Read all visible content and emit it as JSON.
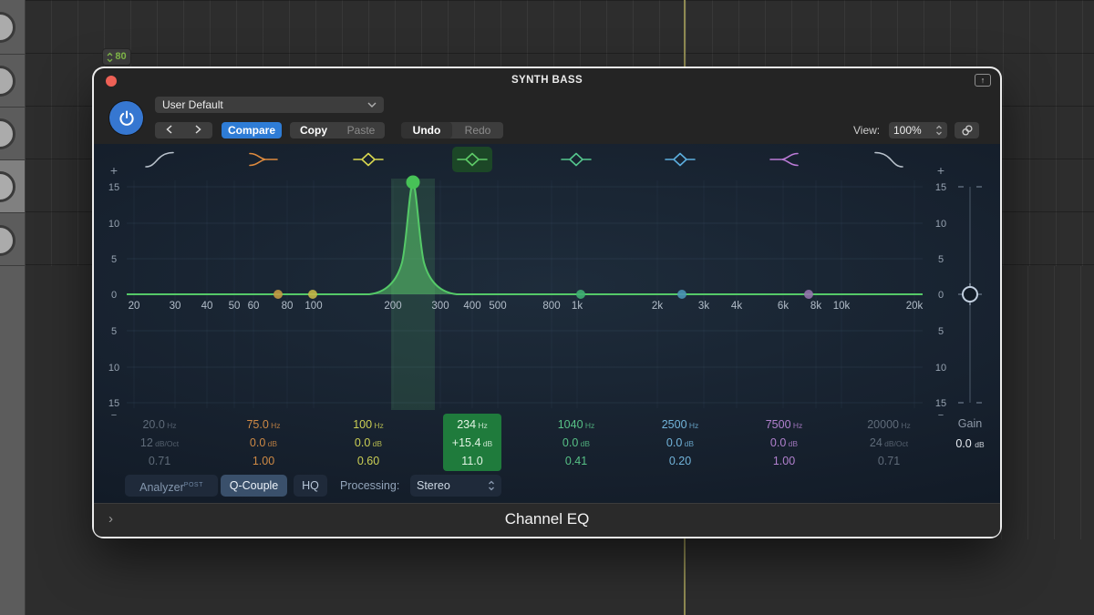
{
  "overlay": {
    "badge_value": "80"
  },
  "window": {
    "title": "SYNTH BASS",
    "footer_label": "Channel EQ",
    "header": {
      "preset": "User Default",
      "compare": "Compare",
      "copy": "Copy",
      "paste": "Paste",
      "undo": "Undo",
      "redo": "Redo",
      "view_label": "View:",
      "view_value": "100%"
    }
  },
  "eq": {
    "db_ticks": [
      "15",
      "10",
      "5",
      "0",
      "5",
      "10",
      "15"
    ],
    "freq_ticks": [
      "20",
      "30",
      "40",
      "50",
      "60",
      "80",
      "100",
      "200",
      "300",
      "400",
      "500",
      "800",
      "1k",
      "2k",
      "3k",
      "4k",
      "6k",
      "8k",
      "10k",
      "20k"
    ],
    "gain": {
      "label": "Gain",
      "value": "0.0",
      "unit": "dB"
    },
    "bands": [
      {
        "id": 1,
        "shape": "highpass",
        "icon_color": "#b9c2cc",
        "text_color": "#5f6b79",
        "freq": "20.0",
        "freq_unit": "Hz",
        "gain": "12",
        "gain_unit": "dB/Oct",
        "q": "0.71",
        "selected": false
      },
      {
        "id": 2,
        "shape": "lowshelf",
        "icon_color": "#dd8a3e",
        "text_color": "#cf8a45",
        "freq": "75.0",
        "freq_unit": "Hz",
        "gain": "0.0",
        "gain_unit": "dB",
        "q": "1.00",
        "selected": false,
        "dot_color": "#c39a42"
      },
      {
        "id": 3,
        "shape": "bell",
        "icon_color": "#d9d74f",
        "text_color": "#ccd055",
        "freq": "100",
        "freq_unit": "Hz",
        "gain": "0.0",
        "gain_unit": "dB",
        "q": "0.60",
        "selected": false,
        "dot_color": "#c3b747"
      },
      {
        "id": 4,
        "shape": "bell",
        "icon_color": "#5ecb68",
        "text_color": "#e2f4e4",
        "freq": "234",
        "freq_unit": "Hz",
        "gain": "+15.4",
        "gain_unit": "dB",
        "q": "11.0",
        "selected": true,
        "selected_bg": "#1f7b3c"
      },
      {
        "id": 5,
        "shape": "bell",
        "icon_color": "#55c78e",
        "text_color": "#57c186",
        "freq": "1040",
        "freq_unit": "Hz",
        "gain": "0.0",
        "gain_unit": "dB",
        "q": "0.41",
        "selected": false,
        "dot_color": "#3fae72"
      },
      {
        "id": 6,
        "shape": "bell",
        "icon_color": "#5caede",
        "text_color": "#72b4da",
        "freq": "2500",
        "freq_unit": "Hz",
        "gain": "0.0",
        "gain_unit": "dB",
        "q": "0.20",
        "selected": false,
        "dot_color": "#4a93b4"
      },
      {
        "id": 7,
        "shape": "highshelf",
        "icon_color": "#bb7ad6",
        "text_color": "#b281cf",
        "freq": "7500",
        "freq_unit": "Hz",
        "gain": "0.0",
        "gain_unit": "dB",
        "q": "1.00",
        "selected": false,
        "dot_color": "#9273ab"
      },
      {
        "id": 8,
        "shape": "lowpass",
        "icon_color": "#b9c2cc",
        "text_color": "#5f6b79",
        "freq": "20000",
        "freq_unit": "Hz",
        "gain": "24",
        "gain_unit": "dB/Oct",
        "q": "0.71",
        "selected": false
      }
    ],
    "selected_band": {
      "freq_hz": 234,
      "gain_db": 15.4,
      "q": 11.0
    },
    "controls": {
      "analyzer": "Analyzer",
      "analyzer_mode": "POST",
      "q_couple": "Q-Couple",
      "hq": "HQ",
      "processing_label": "Processing:",
      "processing_value": "Stereo"
    },
    "colors": {
      "curve": "#55c968",
      "accent_blue": "#2e7cd6",
      "selected_green": "#1f7b3c",
      "playhead": "#8f8a52"
    }
  }
}
